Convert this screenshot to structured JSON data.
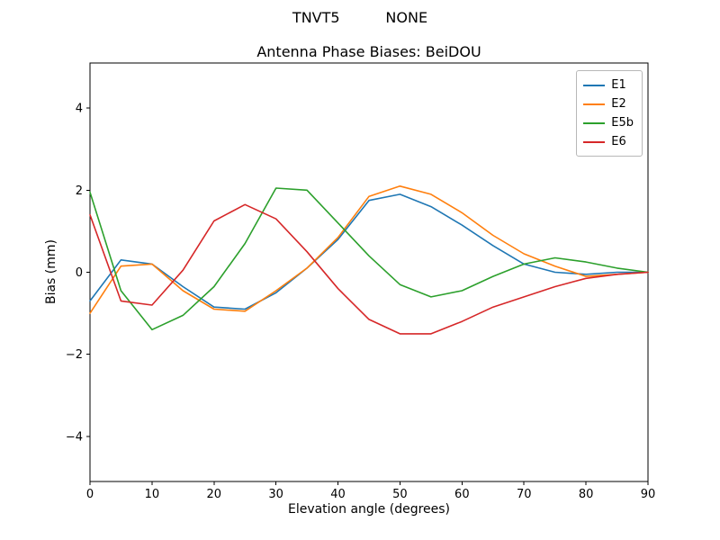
{
  "figure": {
    "suptitle": "TNVT5          NONE",
    "title": "Antenna Phase Biases: BeiDOU",
    "xlabel": "Elevation angle (degrees)",
    "ylabel": "Bias (mm)"
  },
  "chart_data": {
    "type": "line",
    "suptitle": "TNVT5          NONE",
    "title": "Antenna Phase Biases: BeiDOU",
    "xlabel": "Elevation angle (degrees)",
    "ylabel": "Bias (mm)",
    "xlim": [
      0,
      90
    ],
    "ylim": [
      -5.1,
      5.1
    ],
    "xticks": [
      0,
      10,
      20,
      30,
      40,
      50,
      60,
      70,
      80,
      90
    ],
    "yticks": [
      -4,
      -2,
      0,
      2,
      4
    ],
    "grid": false,
    "legend_position": "upper right",
    "x": [
      0,
      5,
      10,
      15,
      20,
      25,
      30,
      35,
      40,
      45,
      50,
      55,
      60,
      65,
      70,
      75,
      80,
      85,
      90
    ],
    "series": [
      {
        "name": "E1",
        "color": "#1f77b4",
        "values": [
          -0.7,
          0.3,
          0.2,
          -0.35,
          -0.85,
          -0.9,
          -0.5,
          0.1,
          0.8,
          1.75,
          1.9,
          1.6,
          1.15,
          0.65,
          0.2,
          0.0,
          -0.05,
          0.0,
          0.0
        ]
      },
      {
        "name": "E2",
        "color": "#ff7f0e",
        "values": [
          -1.0,
          0.15,
          0.2,
          -0.45,
          -0.9,
          -0.95,
          -0.45,
          0.1,
          0.85,
          1.85,
          2.1,
          1.9,
          1.45,
          0.9,
          0.45,
          0.15,
          -0.1,
          -0.05,
          0.0
        ]
      },
      {
        "name": "E5b",
        "color": "#2ca02c",
        "values": [
          1.95,
          -0.45,
          -1.4,
          -1.05,
          -0.35,
          0.7,
          2.05,
          2.0,
          1.2,
          0.4,
          -0.3,
          -0.6,
          -0.45,
          -0.1,
          0.2,
          0.35,
          0.25,
          0.1,
          0.0
        ]
      },
      {
        "name": "E6",
        "color": "#d62728",
        "values": [
          1.4,
          -0.7,
          -0.8,
          0.05,
          1.25,
          1.65,
          1.3,
          0.5,
          -0.4,
          -1.15,
          -1.5,
          -1.5,
          -1.2,
          -0.85,
          -0.6,
          -0.35,
          -0.15,
          -0.05,
          0.0
        ]
      }
    ]
  }
}
